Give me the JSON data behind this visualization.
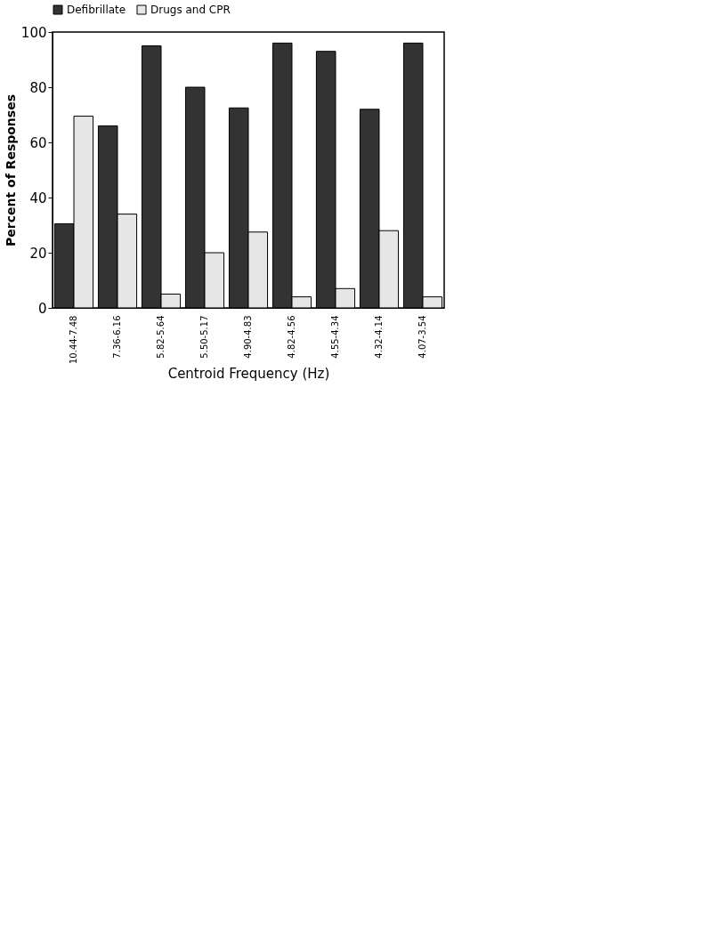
{
  "chart_data": {
    "type": "bar",
    "xlabel": "Centroid Frequency (Hz)",
    "ylabel": "Percent of Responses",
    "categories": [
      "10.44-7.48",
      "7.36-6.16",
      "5.82-5.64",
      "5.50-5.17",
      "4.90-4.83",
      "4.82-4.56",
      "4.55-4.34",
      "4.32-4.14",
      "4.07-3.54"
    ],
    "series": [
      {
        "name": "Defibrillate",
        "color": "#333333",
        "values": [
          30.5,
          66,
          95,
          80,
          72.5,
          96,
          93,
          72,
          96
        ]
      },
      {
        "name": "Drugs and CPR",
        "color": "#e6e6e6",
        "values": [
          69.5,
          34,
          5,
          20,
          27.5,
          4,
          7,
          28,
          4
        ]
      }
    ],
    "ylim": [
      0,
      100
    ],
    "yticks": [
      0,
      20,
      40,
      60,
      80,
      100
    ],
    "grid": false,
    "legend": "top"
  }
}
